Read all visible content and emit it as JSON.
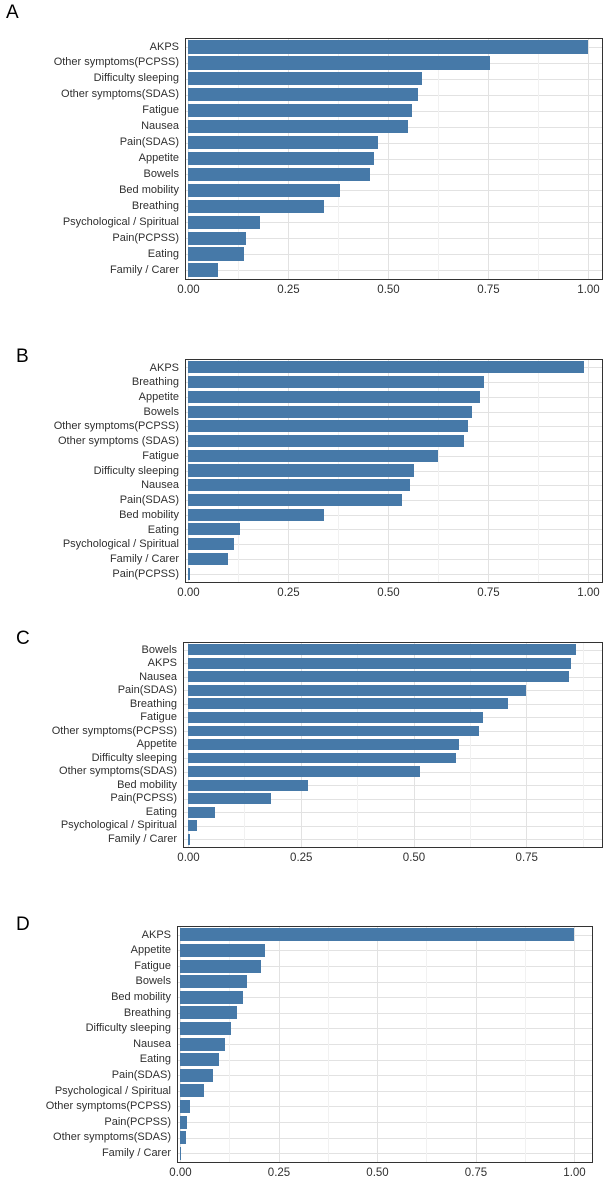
{
  "figure": {
    "panel_labels": [
      "A",
      "B",
      "C",
      "D"
    ]
  },
  "colors": {
    "bar": "#4679A8",
    "panel_border": "#333333",
    "grid_major": "#e2e2e2",
    "grid_minor": "#f1f1f1",
    "text": "#303030"
  },
  "chart_data": [
    {
      "type": "bar",
      "panel_label": "A",
      "orientation": "horizontal",
      "categories": [
        "AKPS",
        "Other symptoms(PCPSS)",
        "Difficulty sleeping",
        "Other symptoms(SDAS)",
        "Fatigue",
        "Nausea",
        "Pain(SDAS)",
        "Appetite",
        "Bowels",
        "Bed mobility",
        "Breathing",
        "Psychological / Spiritual",
        "Pain(PCPSS)",
        "Eating",
        "Family / Carer"
      ],
      "values": [
        1.0,
        0.755,
        0.585,
        0.575,
        0.56,
        0.55,
        0.475,
        0.465,
        0.455,
        0.38,
        0.34,
        0.18,
        0.145,
        0.14,
        0.075
      ],
      "xticks": [
        0,
        0.25,
        0.5,
        0.75,
        1.0
      ],
      "xtick_labels": [
        "0.00",
        "0.25",
        "0.50",
        "0.75",
        "1.00"
      ],
      "xlim": [
        0,
        1.045
      ],
      "grid": true,
      "legend": false
    },
    {
      "type": "bar",
      "panel_label": "B",
      "orientation": "horizontal",
      "categories": [
        "AKPS",
        "Breathing",
        "Appetite",
        "Bowels",
        "Other symptoms(PCPSS)",
        "Other symptoms (SDAS)",
        "Fatigue",
        "Difficulty sleeping",
        "Nausea",
        "Pain(SDAS)",
        "Bed mobility",
        "Eating",
        "Psychological / Spiritual",
        "Family / Carer",
        "Pain(PCPSS)"
      ],
      "values": [
        0.99,
        0.74,
        0.73,
        0.71,
        0.7,
        0.69,
        0.625,
        0.565,
        0.555,
        0.535,
        0.34,
        0.13,
        0.115,
        0.1,
        0.005
      ],
      "xticks": [
        0,
        0.25,
        0.5,
        0.75,
        1.0
      ],
      "xtick_labels": [
        "0.00",
        "0.25",
        "0.50",
        "0.75",
        "1.00"
      ],
      "xlim": [
        0,
        1.045
      ],
      "grid": true,
      "legend": false
    },
    {
      "type": "bar",
      "panel_label": "C",
      "orientation": "horizontal",
      "categories": [
        "Bowels",
        "AKPS",
        "Nausea",
        "Pain(SDAS)",
        "Breathing",
        "Fatigue",
        "Other symptoms(PCPSS)",
        "Appetite",
        "Difficulty sleeping",
        "Other symptoms(SDAS)",
        "Bed mobility",
        "Pain(PCPSS)",
        "Eating",
        "Psychological / Spiritual",
        "Family / Carer"
      ],
      "values": [
        0.86,
        0.85,
        0.845,
        0.75,
        0.71,
        0.655,
        0.645,
        0.6,
        0.595,
        0.515,
        0.265,
        0.185,
        0.06,
        0.02,
        0.005
      ],
      "xticks": [
        0,
        0.25,
        0.5,
        0.75
      ],
      "xtick_labels": [
        "0.00",
        "0.25",
        "0.50",
        "0.75"
      ],
      "xlim": [
        0,
        0.93
      ],
      "grid": true,
      "legend": false
    },
    {
      "type": "bar",
      "panel_label": "D",
      "orientation": "horizontal",
      "categories": [
        "AKPS",
        "Appetite",
        "Fatigue",
        "Bowels",
        "Bed mobility",
        "Breathing",
        "Difficulty sleeping",
        "Nausea",
        "Eating",
        "Pain(SDAS)",
        "Psychological / Spiritual",
        "Other symptoms(PCPSS)",
        "Pain(PCPSS)",
        "Other symptoms(SDAS)",
        "Family / Carer"
      ],
      "values": [
        1.0,
        0.215,
        0.205,
        0.17,
        0.16,
        0.145,
        0.13,
        0.115,
        0.1,
        0.085,
        0.06,
        0.025,
        0.018,
        0.015,
        0.002
      ],
      "xticks": [
        0,
        0.25,
        0.5,
        0.75,
        1.0
      ],
      "xtick_labels": [
        "0.00",
        "0.25",
        "0.50",
        "0.75",
        "1.00"
      ],
      "xlim": [
        0,
        1.053
      ],
      "grid": true,
      "legend": false
    }
  ]
}
